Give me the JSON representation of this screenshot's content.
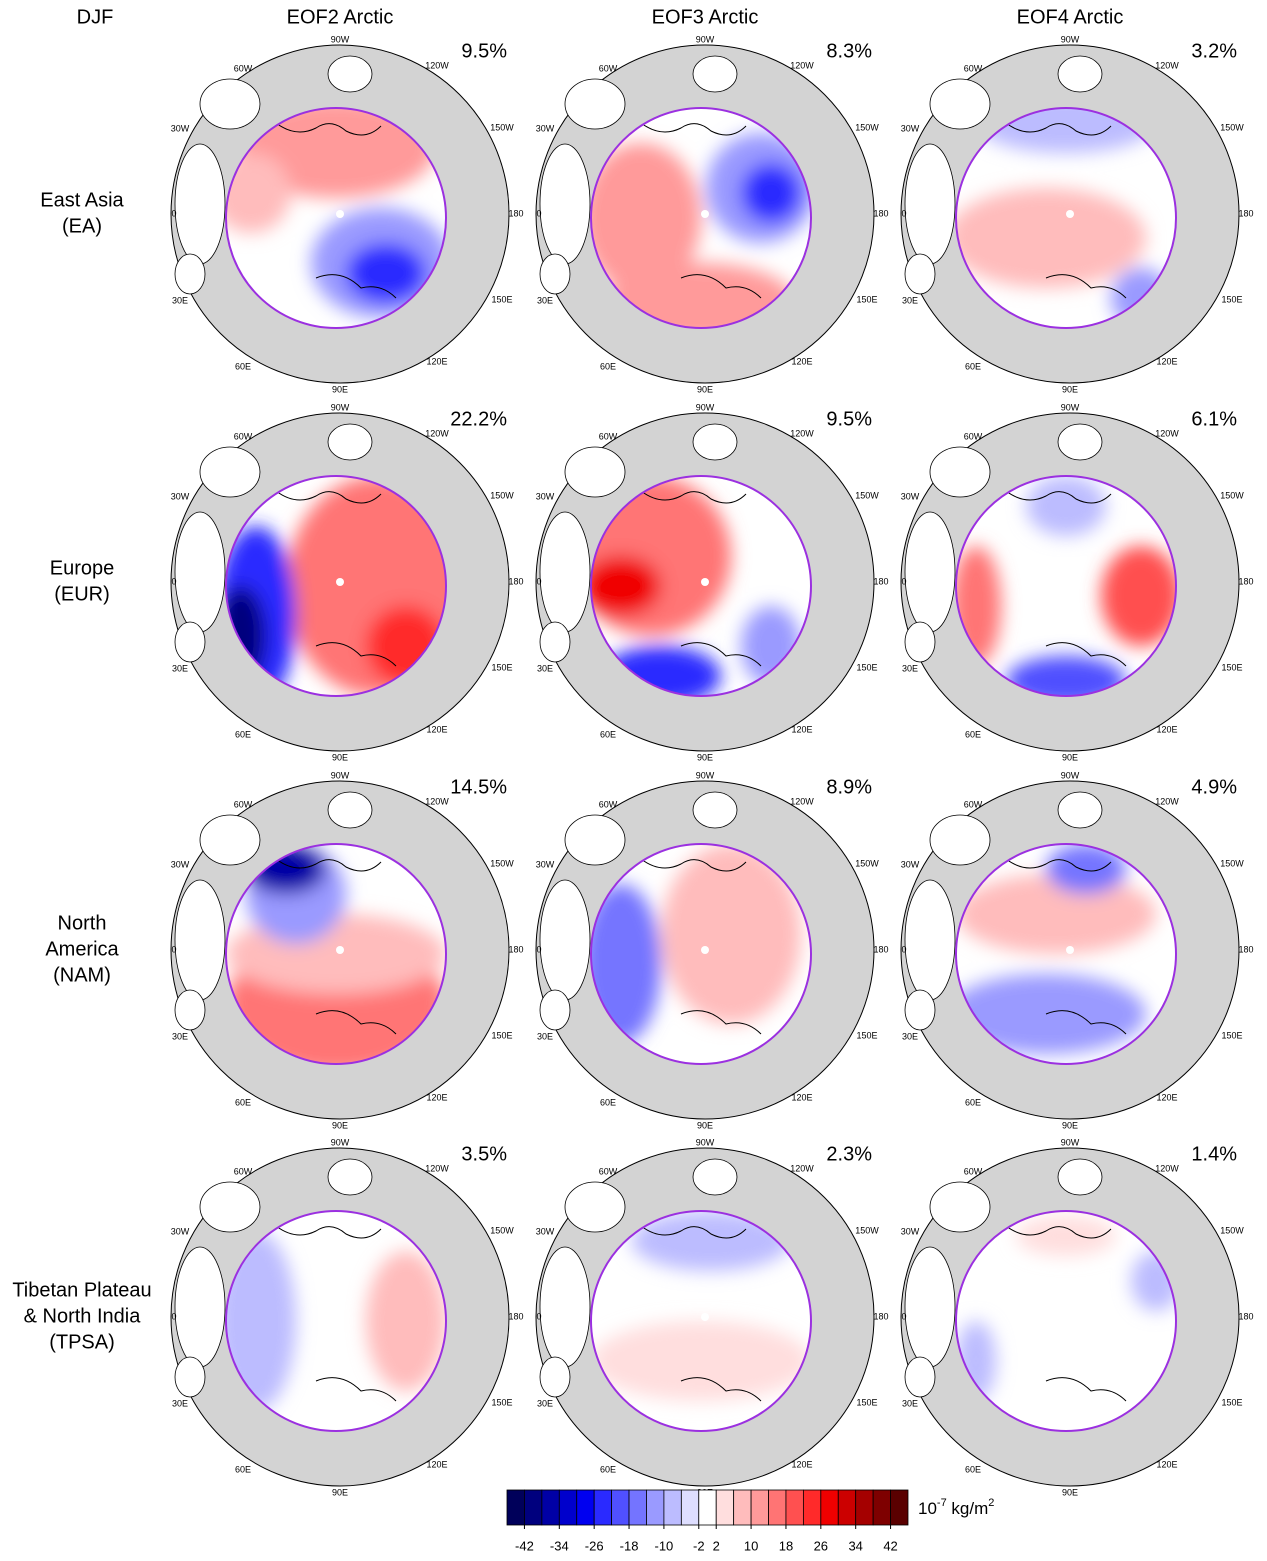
{
  "corner_label": "DJF",
  "columns": [
    "EOF2 Arctic",
    "EOF3 Arctic",
    "EOF4 Arctic"
  ],
  "rows": [
    {
      "label": [
        "East Asia",
        "(EA)"
      ],
      "variance": [
        "9.5%",
        "8.3%",
        "3.2%"
      ]
    },
    {
      "label": [
        "Europe",
        "(EUR)"
      ],
      "variance": [
        "22.2%",
        "9.5%",
        "6.1%"
      ]
    },
    {
      "label": [
        "North",
        "America",
        "(NAM)"
      ],
      "variance": [
        "14.5%",
        "8.9%",
        "4.9%"
      ]
    },
    {
      "label": [
        "Tibetan Plateau",
        "& North India",
        "(TPSA)"
      ],
      "variance": [
        "3.5%",
        "2.3%",
        "1.4%"
      ]
    }
  ],
  "longitude_labels": [
    "90W",
    "120W",
    "150W",
    "180",
    "150E",
    "120E",
    "90E",
    "60E",
    "30E",
    "0",
    "30W",
    "60W"
  ],
  "colorbar": {
    "colors": [
      "#00005a",
      "#00007e",
      "#0000a5",
      "#0000cc",
      "#0000f0",
      "#2a2aff",
      "#5050ff",
      "#7474ff",
      "#9a9aff",
      "#bcbcff",
      "#dedeff",
      "#ffffff",
      "#ffdede",
      "#ffbcbc",
      "#ff9a9a",
      "#ff7474",
      "#ff5050",
      "#ff2a2a",
      "#f00000",
      "#cc0000",
      "#a50000",
      "#7e0000",
      "#5a0000"
    ],
    "ticks": [
      -42,
      -34,
      -26,
      -18,
      -10,
      -2,
      2,
      10,
      18,
      26,
      34,
      42
    ],
    "unit": [
      "10",
      "-7",
      " kg/m",
      "2"
    ]
  }
}
